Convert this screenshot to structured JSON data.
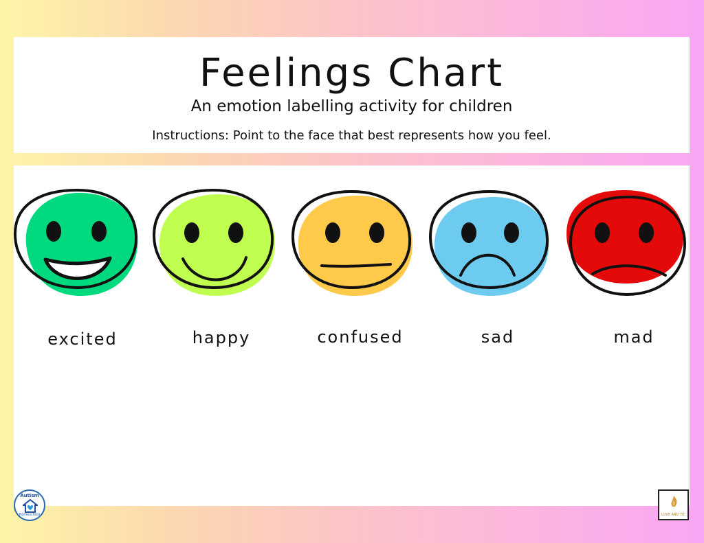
{
  "header": {
    "title": "Feelings Chart",
    "subtitle": "An emotion labelling activity for children",
    "instructions": "Instructions: Point to the face that best represents how you feel."
  },
  "faces": [
    {
      "label": "excited",
      "color": "#00d97e",
      "expression": "big-smile"
    },
    {
      "label": "happy",
      "color": "#c0ff50",
      "expression": "smile"
    },
    {
      "label": "confused",
      "color": "#ffc94a",
      "expression": "flat-mouth"
    },
    {
      "label": "sad",
      "color": "#6ecbf0",
      "expression": "frown"
    },
    {
      "label": "mad",
      "color": "#e50a0a",
      "expression": "slight-frown"
    }
  ],
  "logos": {
    "left": {
      "text_top": "Autism",
      "text_bottom": "Homeschool",
      "icon": "house-heart-icon"
    },
    "right": {
      "text": "LOVE AND TIC",
      "icon": "flame-logo-icon"
    }
  }
}
